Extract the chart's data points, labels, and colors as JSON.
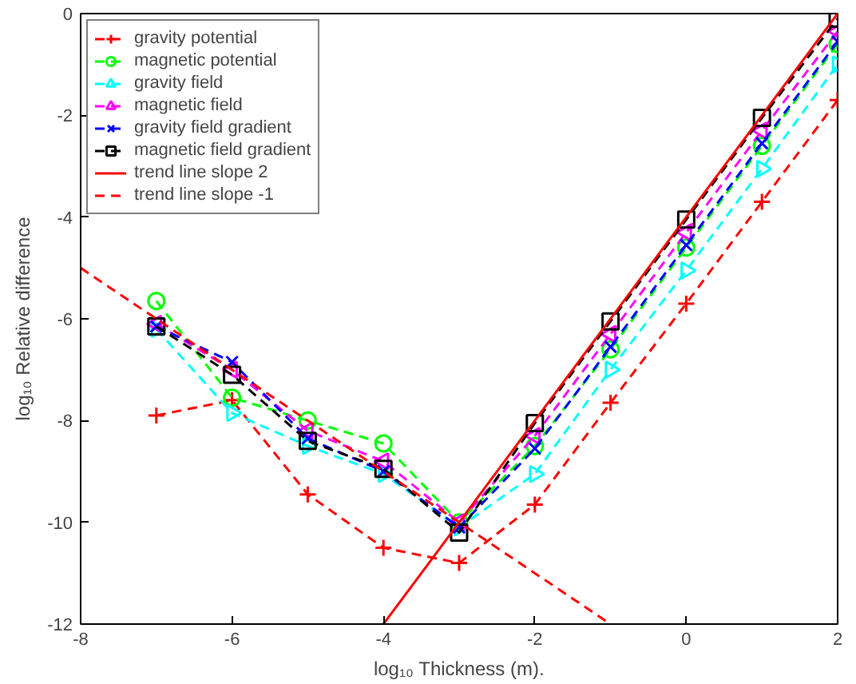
{
  "chart_data": {
    "type": "line",
    "xlabel": "log₁₀ Thickness (m).",
    "ylabel": "log₁₀ Relative difference",
    "x": [
      -7,
      -6,
      -5,
      -4,
      -3,
      -2,
      -1,
      0,
      1,
      2
    ],
    "xlim": [
      -8,
      2
    ],
    "ylim": [
      -12,
      0
    ],
    "xticks": [
      -8,
      -6,
      -4,
      -2,
      0,
      2
    ],
    "yticks": [
      -12,
      -10,
      -8,
      -6,
      -4,
      -2,
      0
    ],
    "legend": "top left",
    "grid": false,
    "series": [
      {
        "name": "gravity potential",
        "color": "#ff0000",
        "marker": "plus",
        "line_style": "dashed",
        "values": [
          -7.9,
          -7.6,
          -9.45,
          -10.5,
          -10.8,
          -9.65,
          -7.65,
          -5.7,
          -3.7,
          -1.7
        ]
      },
      {
        "name": "magnetic potential",
        "color": "#00ff00",
        "marker": "circle",
        "line_style": "dashed",
        "values": [
          -5.65,
          -7.55,
          -8.0,
          -8.45,
          -10.0,
          -8.5,
          -6.6,
          -4.6,
          -2.6,
          -0.6
        ]
      },
      {
        "name": "gravity field",
        "color": "#00ffff",
        "marker": "triangle_right",
        "line_style": "dashed",
        "values": [
          -6.2,
          -7.85,
          -8.5,
          -9.05,
          -10.1,
          -9.05,
          -7.0,
          -5.05,
          -3.05,
          -1.0
        ]
      },
      {
        "name": "magnetic field",
        "color": "#ff00ff",
        "marker": "triangle_left",
        "line_style": "dashed",
        "values": [
          -6.1,
          -7.0,
          -8.2,
          -8.8,
          -10.0,
          -8.3,
          -6.3,
          -4.3,
          -2.3,
          -0.35
        ]
      },
      {
        "name": "gravity field gradient",
        "color": "#0000ff",
        "marker": "x",
        "line_style": "dashed",
        "values": [
          -6.15,
          -6.85,
          -8.35,
          -9.0,
          -10.1,
          -8.55,
          -6.55,
          -4.55,
          -2.55,
          -0.55
        ]
      },
      {
        "name": "magnetic field gradient",
        "color": "#000000",
        "marker": "square",
        "line_style": "dashed",
        "values": [
          -6.15,
          -7.1,
          -8.4,
          -8.95,
          -10.2,
          -8.05,
          -6.05,
          -4.05,
          -2.05,
          -0.1
        ]
      },
      {
        "name": "trend line slope 2",
        "color": "#ff0000",
        "marker": "none",
        "line_style": "solid",
        "x": [
          -4,
          2
        ],
        "values": [
          -12,
          0
        ]
      },
      {
        "name": "trend line slope -1",
        "color": "#ff0000",
        "marker": "none",
        "line_style": "dashed",
        "x": [
          -8,
          -1
        ],
        "values": [
          -5,
          -12
        ]
      }
    ]
  }
}
